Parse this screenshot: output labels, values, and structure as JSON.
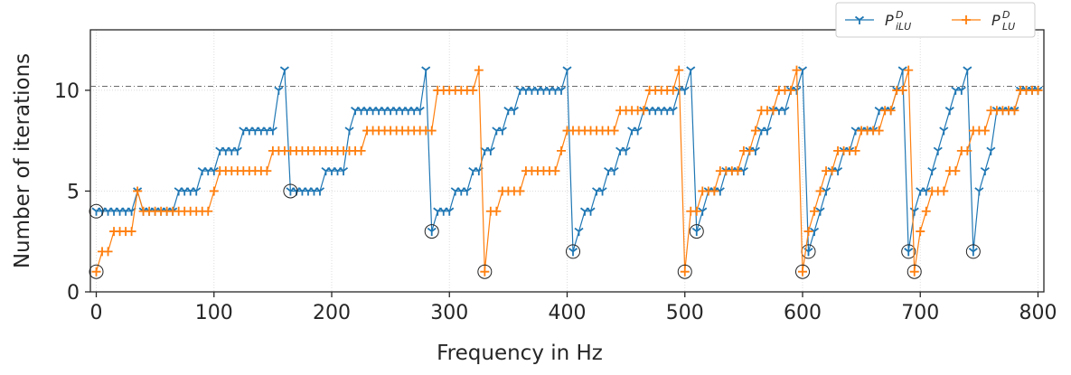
{
  "chart_data": {
    "type": "line",
    "xlabel": "Frequency in Hz",
    "ylabel": "Number of iterations",
    "xlim": [
      -5,
      805
    ],
    "ylim": [
      0,
      13
    ],
    "xticks": [
      0,
      100,
      200,
      300,
      400,
      500,
      600,
      700,
      800
    ],
    "yticks": [
      0,
      5,
      10
    ],
    "grid": true,
    "legend": "upper right",
    "hline": 10.2,
    "x": [
      0,
      5,
      10,
      15,
      20,
      25,
      30,
      35,
      40,
      45,
      50,
      55,
      60,
      65,
      70,
      75,
      80,
      85,
      90,
      95,
      100,
      105,
      110,
      115,
      120,
      125,
      130,
      135,
      140,
      145,
      150,
      155,
      160,
      165,
      170,
      175,
      180,
      185,
      190,
      195,
      200,
      205,
      210,
      215,
      220,
      225,
      230,
      235,
      240,
      245,
      250,
      255,
      260,
      265,
      270,
      275,
      280,
      285,
      290,
      295,
      300,
      305,
      310,
      315,
      320,
      325,
      330,
      335,
      340,
      345,
      350,
      355,
      360,
      365,
      370,
      375,
      380,
      385,
      390,
      395,
      400,
      405,
      410,
      415,
      420,
      425,
      430,
      435,
      440,
      445,
      450,
      455,
      460,
      465,
      470,
      475,
      480,
      485,
      490,
      495,
      500,
      505,
      510,
      515,
      520,
      525,
      530,
      535,
      540,
      545,
      550,
      555,
      560,
      565,
      570,
      575,
      580,
      585,
      590,
      595,
      600,
      605,
      610,
      615,
      620,
      625,
      630,
      635,
      640,
      645,
      650,
      655,
      660,
      665,
      670,
      675,
      680,
      685,
      690,
      695,
      700,
      705,
      710,
      715,
      720,
      725,
      730,
      735,
      740,
      745,
      750,
      755,
      760,
      765,
      770,
      775,
      780,
      785,
      790,
      795,
      800
    ],
    "series": [
      {
        "name": {
          "base": "P",
          "sub": "iLU",
          "sup": "D"
        },
        "color": "#1f77b4",
        "marker": "tri-down",
        "values": [
          4,
          4,
          4,
          4,
          4,
          4,
          4,
          5,
          4,
          4,
          4,
          4,
          4,
          4,
          5,
          5,
          5,
          5,
          6,
          6,
          6,
          7,
          7,
          7,
          7,
          8,
          8,
          8,
          8,
          8,
          8,
          10,
          11,
          5,
          5,
          5,
          5,
          5,
          5,
          6,
          6,
          6,
          6,
          8,
          9,
          9,
          9,
          9,
          9,
          9,
          9,
          9,
          9,
          9,
          9,
          9,
          11,
          3,
          4,
          4,
          4,
          5,
          5,
          5,
          6,
          6,
          7,
          7,
          8,
          8,
          9,
          9,
          10,
          10,
          10,
          10,
          10,
          10,
          10,
          10,
          11,
          2,
          3,
          4,
          4,
          5,
          5,
          6,
          6,
          7,
          7,
          8,
          8,
          9,
          9,
          9,
          9,
          9,
          9,
          10,
          10,
          11,
          3,
          4,
          5,
          5,
          5,
          6,
          6,
          6,
          6,
          7,
          7,
          8,
          8,
          9,
          9,
          9,
          10,
          10,
          11,
          2,
          3,
          4,
          5,
          6,
          6,
          7,
          7,
          8,
          8,
          8,
          8,
          9,
          9,
          9,
          10,
          11,
          2,
          4,
          5,
          5,
          6,
          7,
          8,
          9,
          10,
          10,
          11,
          2,
          5,
          6,
          7,
          9,
          9,
          9,
          9,
          10,
          10,
          10,
          10
        ],
        "circled": [
          0,
          33,
          57,
          81,
          102,
          121,
          138,
          149
        ]
      },
      {
        "name": {
          "base": "P",
          "sub": "LU",
          "sup": "D"
        },
        "color": "#ff7f0e",
        "marker": "plus",
        "values": [
          1,
          2,
          2,
          3,
          3,
          3,
          3,
          5,
          4,
          4,
          4,
          4,
          4,
          4,
          4,
          4,
          4,
          4,
          4,
          4,
          5,
          6,
          6,
          6,
          6,
          6,
          6,
          6,
          6,
          6,
          7,
          7,
          7,
          7,
          7,
          7,
          7,
          7,
          7,
          7,
          7,
          7,
          7,
          7,
          7,
          7,
          8,
          8,
          8,
          8,
          8,
          8,
          8,
          8,
          8,
          8,
          8,
          8,
          10,
          10,
          10,
          10,
          10,
          10,
          10,
          11,
          1,
          4,
          4,
          5,
          5,
          5,
          5,
          6,
          6,
          6,
          6,
          6,
          6,
          7,
          8,
          8,
          8,
          8,
          8,
          8,
          8,
          8,
          8,
          9,
          9,
          9,
          9,
          9,
          10,
          10,
          10,
          10,
          10,
          11,
          1,
          4,
          4,
          5,
          5,
          5,
          6,
          6,
          6,
          6,
          7,
          7,
          8,
          9,
          9,
          9,
          10,
          10,
          10,
          11,
          1,
          3,
          4,
          5,
          6,
          6,
          7,
          7,
          7,
          7,
          8,
          8,
          8,
          8,
          9,
          9,
          10,
          10,
          11,
          1,
          3,
          4,
          5,
          5,
          5,
          6,
          6,
          7,
          7,
          8,
          8,
          8,
          9,
          9,
          9,
          9,
          9,
          10,
          10,
          10,
          10
        ],
        "circled": [
          0,
          66,
          100,
          120,
          139
        ]
      }
    ]
  }
}
